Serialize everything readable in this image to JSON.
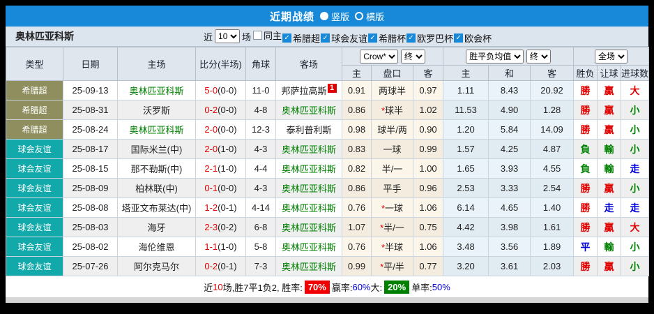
{
  "title_bar": {
    "title": "近期战绩",
    "options": [
      {
        "label": "竖版",
        "selected": true
      },
      {
        "label": "横版",
        "selected": false
      }
    ]
  },
  "toolbar": {
    "team_name": "奥林匹亚科斯",
    "near_label": "近",
    "match_count": "10",
    "games_label": "场",
    "filters": [
      {
        "label": "同主",
        "checked": false
      },
      {
        "label": "希腊超",
        "checked": true
      },
      {
        "label": "球会友谊",
        "checked": true
      },
      {
        "label": "希腊杯",
        "checked": true
      },
      {
        "label": "欧罗巴杯",
        "checked": true
      },
      {
        "label": "欧会杯",
        "checked": true
      }
    ]
  },
  "colors": {
    "accent_blue": "#1789d8",
    "league_olive": "#8e8e5e",
    "league_teal": "#12a9ab",
    "win_red": "#e00000",
    "lose_green": "#008000",
    "draw_blue": "#0000d8"
  },
  "table": {
    "main_headers": [
      "类型",
      "日期",
      "主场",
      "比分(半场)",
      "角球",
      "客场"
    ],
    "selects": {
      "odds_source": "Crow*",
      "odds_time": "终",
      "avg_source": "胜平负均值",
      "avg_time": "终",
      "scope": "全场"
    },
    "sub_headers": [
      "主",
      "盘口",
      "客",
      "主",
      "和",
      "客",
      "胜负",
      "让球",
      "进球数"
    ],
    "rows": [
      {
        "league": "希腊超",
        "league_color": "olive",
        "date": "25-09-13",
        "home": "奥林匹亚科斯",
        "home_highlight": true,
        "score": "5-0",
        "half": "(0-0)",
        "corners": "11-0",
        "away": "邦萨拉高斯",
        "away_highlight": false,
        "away_badge": "1",
        "crown": {
          "home": "0.91",
          "star": false,
          "handicap": "两球半",
          "away": "0.97"
        },
        "avg": {
          "home": "1.11",
          "draw": "8.43",
          "away": "20.92"
        },
        "results": [
          {
            "text": "勝",
            "color": "red"
          },
          {
            "text": "贏",
            "color": "red"
          },
          {
            "text": "大",
            "color": "red"
          }
        ]
      },
      {
        "league": "希腊超",
        "league_color": "olive",
        "date": "25-08-31",
        "home": "沃罗斯",
        "home_highlight": false,
        "score": "0-2",
        "half": "(0-0)",
        "corners": "4-8",
        "away": "奥林匹亚科斯",
        "away_highlight": true,
        "away_badge": null,
        "crown": {
          "home": "0.86",
          "star": true,
          "handicap": "球半",
          "away": "1.02"
        },
        "avg": {
          "home": "11.53",
          "draw": "4.90",
          "away": "1.28"
        },
        "results": [
          {
            "text": "勝",
            "color": "red"
          },
          {
            "text": "贏",
            "color": "red"
          },
          {
            "text": "小",
            "color": "green"
          }
        ]
      },
      {
        "league": "希腊超",
        "league_color": "olive",
        "date": "25-08-24",
        "home": "奥林匹亚科斯",
        "home_highlight": true,
        "score": "2-0",
        "half": "(0-0)",
        "corners": "12-3",
        "away": "泰利普利斯",
        "away_highlight": false,
        "away_badge": null,
        "crown": {
          "home": "0.98",
          "star": false,
          "handicap": "球半/两",
          "away": "0.90"
        },
        "avg": {
          "home": "1.20",
          "draw": "5.84",
          "away": "14.09"
        },
        "results": [
          {
            "text": "勝",
            "color": "red"
          },
          {
            "text": "贏",
            "color": "red"
          },
          {
            "text": "小",
            "color": "green"
          }
        ]
      },
      {
        "league": "球会友谊",
        "league_color": "teal",
        "date": "25-08-17",
        "home": "国际米兰(中)",
        "home_highlight": false,
        "score": "2-0",
        "half": "(1-0)",
        "corners": "4-3",
        "away": "奥林匹亚科斯",
        "away_highlight": true,
        "away_badge": null,
        "crown": {
          "home": "0.83",
          "star": false,
          "handicap": "一球",
          "away": "0.99"
        },
        "avg": {
          "home": "1.57",
          "draw": "4.25",
          "away": "4.87"
        },
        "results": [
          {
            "text": "負",
            "color": "green"
          },
          {
            "text": "輸",
            "color": "green"
          },
          {
            "text": "小",
            "color": "green"
          }
        ]
      },
      {
        "league": "球会友谊",
        "league_color": "teal",
        "date": "25-08-15",
        "home": "那不勒斯(中)",
        "home_highlight": false,
        "score": "2-1",
        "half": "(1-0)",
        "corners": "4-4",
        "away": "奥林匹亚科斯",
        "away_highlight": true,
        "away_badge": null,
        "crown": {
          "home": "0.82",
          "star": false,
          "handicap": "半/一",
          "away": "1.00"
        },
        "avg": {
          "home": "1.65",
          "draw": "3.93",
          "away": "4.55"
        },
        "results": [
          {
            "text": "負",
            "color": "green"
          },
          {
            "text": "輸",
            "color": "green"
          },
          {
            "text": "走",
            "color": "blue"
          }
        ]
      },
      {
        "league": "球会友谊",
        "league_color": "teal",
        "date": "25-08-09",
        "home": "柏林联(中)",
        "home_highlight": false,
        "score": "0-1",
        "half": "(0-0)",
        "corners": "4-3",
        "away": "奥林匹亚科斯",
        "away_highlight": true,
        "away_badge": null,
        "crown": {
          "home": "0.86",
          "star": false,
          "handicap": "平手",
          "away": "0.96"
        },
        "avg": {
          "home": "2.53",
          "draw": "3.33",
          "away": "2.54"
        },
        "results": [
          {
            "text": "勝",
            "color": "red"
          },
          {
            "text": "贏",
            "color": "red"
          },
          {
            "text": "小",
            "color": "green"
          }
        ]
      },
      {
        "league": "球会友谊",
        "league_color": "teal",
        "date": "25-08-08",
        "home": "塔亚文布莱达(中)",
        "home_highlight": false,
        "score": "1-2",
        "half": "(0-1)",
        "corners": "4-14",
        "away": "奥林匹亚科斯",
        "away_highlight": true,
        "away_badge": null,
        "crown": {
          "home": "0.76",
          "star": true,
          "handicap": "一球",
          "away": "1.06"
        },
        "avg": {
          "home": "6.14",
          "draw": "4.65",
          "away": "1.40"
        },
        "results": [
          {
            "text": "勝",
            "color": "red"
          },
          {
            "text": "走",
            "color": "blue"
          },
          {
            "text": "走",
            "color": "blue"
          }
        ]
      },
      {
        "league": "球会友谊",
        "league_color": "teal",
        "date": "25-08-03",
        "home": "海牙",
        "home_highlight": false,
        "score": "2-3",
        "half": "(0-2)",
        "corners": "6-8",
        "away": "奥林匹亚科斯",
        "away_highlight": true,
        "away_badge": null,
        "crown": {
          "home": "1.07",
          "star": true,
          "handicap": "半/一",
          "away": "0.75"
        },
        "avg": {
          "home": "4.42",
          "draw": "3.98",
          "away": "1.61"
        },
        "results": [
          {
            "text": "勝",
            "color": "red"
          },
          {
            "text": "贏",
            "color": "red"
          },
          {
            "text": "大",
            "color": "red"
          }
        ]
      },
      {
        "league": "球会友谊",
        "league_color": "teal",
        "date": "25-08-02",
        "home": "海伦维恩",
        "home_highlight": false,
        "score": "1-1",
        "half": "(1-0)",
        "corners": "5-8",
        "away": "奥林匹亚科斯",
        "away_highlight": true,
        "away_badge": null,
        "crown": {
          "home": "0.76",
          "star": true,
          "handicap": "半球",
          "away": "1.06"
        },
        "avg": {
          "home": "3.48",
          "draw": "3.56",
          "away": "1.89"
        },
        "results": [
          {
            "text": "平",
            "color": "blue"
          },
          {
            "text": "輸",
            "color": "green"
          },
          {
            "text": "小",
            "color": "green"
          }
        ]
      },
      {
        "league": "球会友谊",
        "league_color": "teal",
        "date": "25-07-26",
        "home": "阿尔克马尔",
        "home_highlight": false,
        "score": "0-2",
        "half": "(0-1)",
        "corners": "7-3",
        "away": "奥林匹亚科斯",
        "away_highlight": true,
        "away_badge": null,
        "crown": {
          "home": "0.99",
          "star": true,
          "handicap": "平/半",
          "away": "0.77"
        },
        "avg": {
          "home": "3.20",
          "draw": "3.61",
          "away": "2.03"
        },
        "results": [
          {
            "text": "勝",
            "color": "red"
          },
          {
            "text": "贏",
            "color": "red"
          },
          {
            "text": "小",
            "color": "green"
          }
        ]
      }
    ]
  },
  "footer": {
    "segments": [
      {
        "text": "近"
      },
      {
        "text": "10",
        "color": "red"
      },
      {
        "text": "场,胜7平1负2, 胜率:"
      },
      {
        "text": "70%",
        "badge": "red"
      },
      {
        "text": "赢率:"
      },
      {
        "text": "60%",
        "color": "blue"
      },
      {
        "text": " 大:"
      },
      {
        "text": "20%",
        "badge": "green"
      },
      {
        "text": "单率:"
      },
      {
        "text": "50%",
        "color": "blue"
      }
    ]
  }
}
